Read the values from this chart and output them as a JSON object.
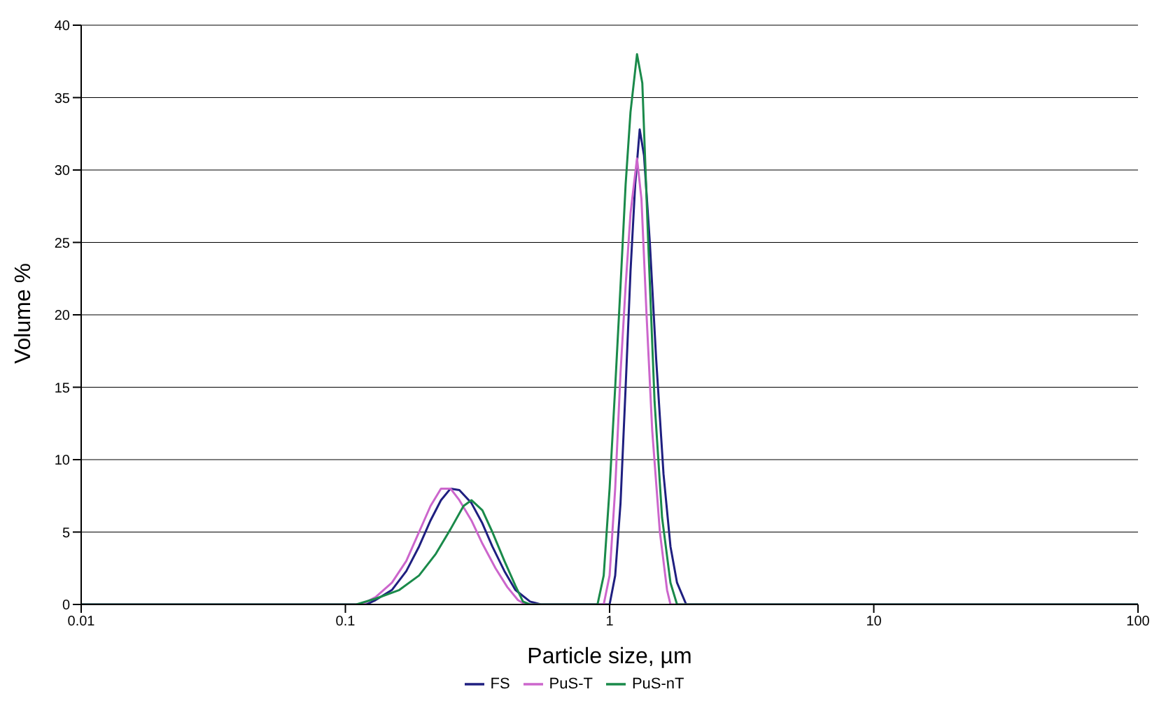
{
  "chart_data": {
    "type": "line",
    "xlabel": "Particle size, µm",
    "ylabel": "Volume %",
    "log": "x",
    "xlim": [
      0.01,
      100
    ],
    "xticks": [
      0.01,
      0.1,
      1,
      10,
      100
    ],
    "ylim": [
      0,
      40
    ],
    "yticks": [
      0,
      5,
      10,
      15,
      20,
      25,
      30,
      35,
      40
    ],
    "grid": "y",
    "legend": "bottom",
    "marker": "none",
    "line_style": "solid",
    "series": [
      {
        "name": "FS",
        "color": "#1f1f80",
        "x": [
          0.01,
          0.12,
          0.13,
          0.15,
          0.17,
          0.19,
          0.21,
          0.23,
          0.25,
          0.27,
          0.3,
          0.33,
          0.36,
          0.4,
          0.44,
          0.5,
          0.55,
          1.0,
          1.05,
          1.1,
          1.15,
          1.2,
          1.25,
          1.3,
          1.35,
          1.42,
          1.5,
          1.6,
          1.7,
          1.8,
          1.95,
          100
        ],
        "values": [
          0,
          0,
          0.3,
          1,
          2.3,
          4,
          5.8,
          7.2,
          8,
          7.9,
          7,
          5.6,
          4,
          2.3,
          1,
          0.2,
          0,
          0,
          2,
          7,
          15,
          23,
          29,
          32.8,
          31,
          25,
          17,
          9,
          4,
          1.5,
          0,
          0
        ]
      },
      {
        "name": "PuS-T",
        "color": "#cc66cc",
        "x": [
          0.01,
          0.115,
          0.13,
          0.15,
          0.17,
          0.19,
          0.21,
          0.23,
          0.25,
          0.27,
          0.3,
          0.33,
          0.37,
          0.41,
          0.45,
          0.48,
          0.95,
          1.0,
          1.05,
          1.1,
          1.15,
          1.2,
          1.27,
          1.32,
          1.38,
          1.45,
          1.55,
          1.65,
          1.7,
          100
        ],
        "values": [
          0,
          0,
          0.5,
          1.5,
          3,
          5,
          6.8,
          8,
          8,
          7.2,
          5.8,
          4.2,
          2.5,
          1.2,
          0.3,
          0,
          0,
          2,
          8,
          16,
          22,
          27,
          30.8,
          28,
          20,
          12,
          5,
          1,
          0,
          0
        ]
      },
      {
        "name": "PuS-nT",
        "color": "#1a8a4a",
        "x": [
          0.01,
          0.11,
          0.13,
          0.16,
          0.19,
          0.22,
          0.25,
          0.28,
          0.3,
          0.33,
          0.36,
          0.4,
          0.44,
          0.47,
          0.5,
          0.9,
          0.95,
          1.0,
          1.05,
          1.1,
          1.15,
          1.2,
          1.27,
          1.33,
          1.4,
          1.48,
          1.58,
          1.7,
          1.8,
          100
        ],
        "values": [
          0,
          0,
          0.4,
          1,
          2,
          3.5,
          5.2,
          6.8,
          7.2,
          6.5,
          5,
          3,
          1.3,
          0.2,
          0,
          0,
          2,
          8,
          15,
          22,
          29,
          34,
          38,
          36,
          25,
          14,
          6,
          1.5,
          0,
          0
        ]
      }
    ]
  }
}
